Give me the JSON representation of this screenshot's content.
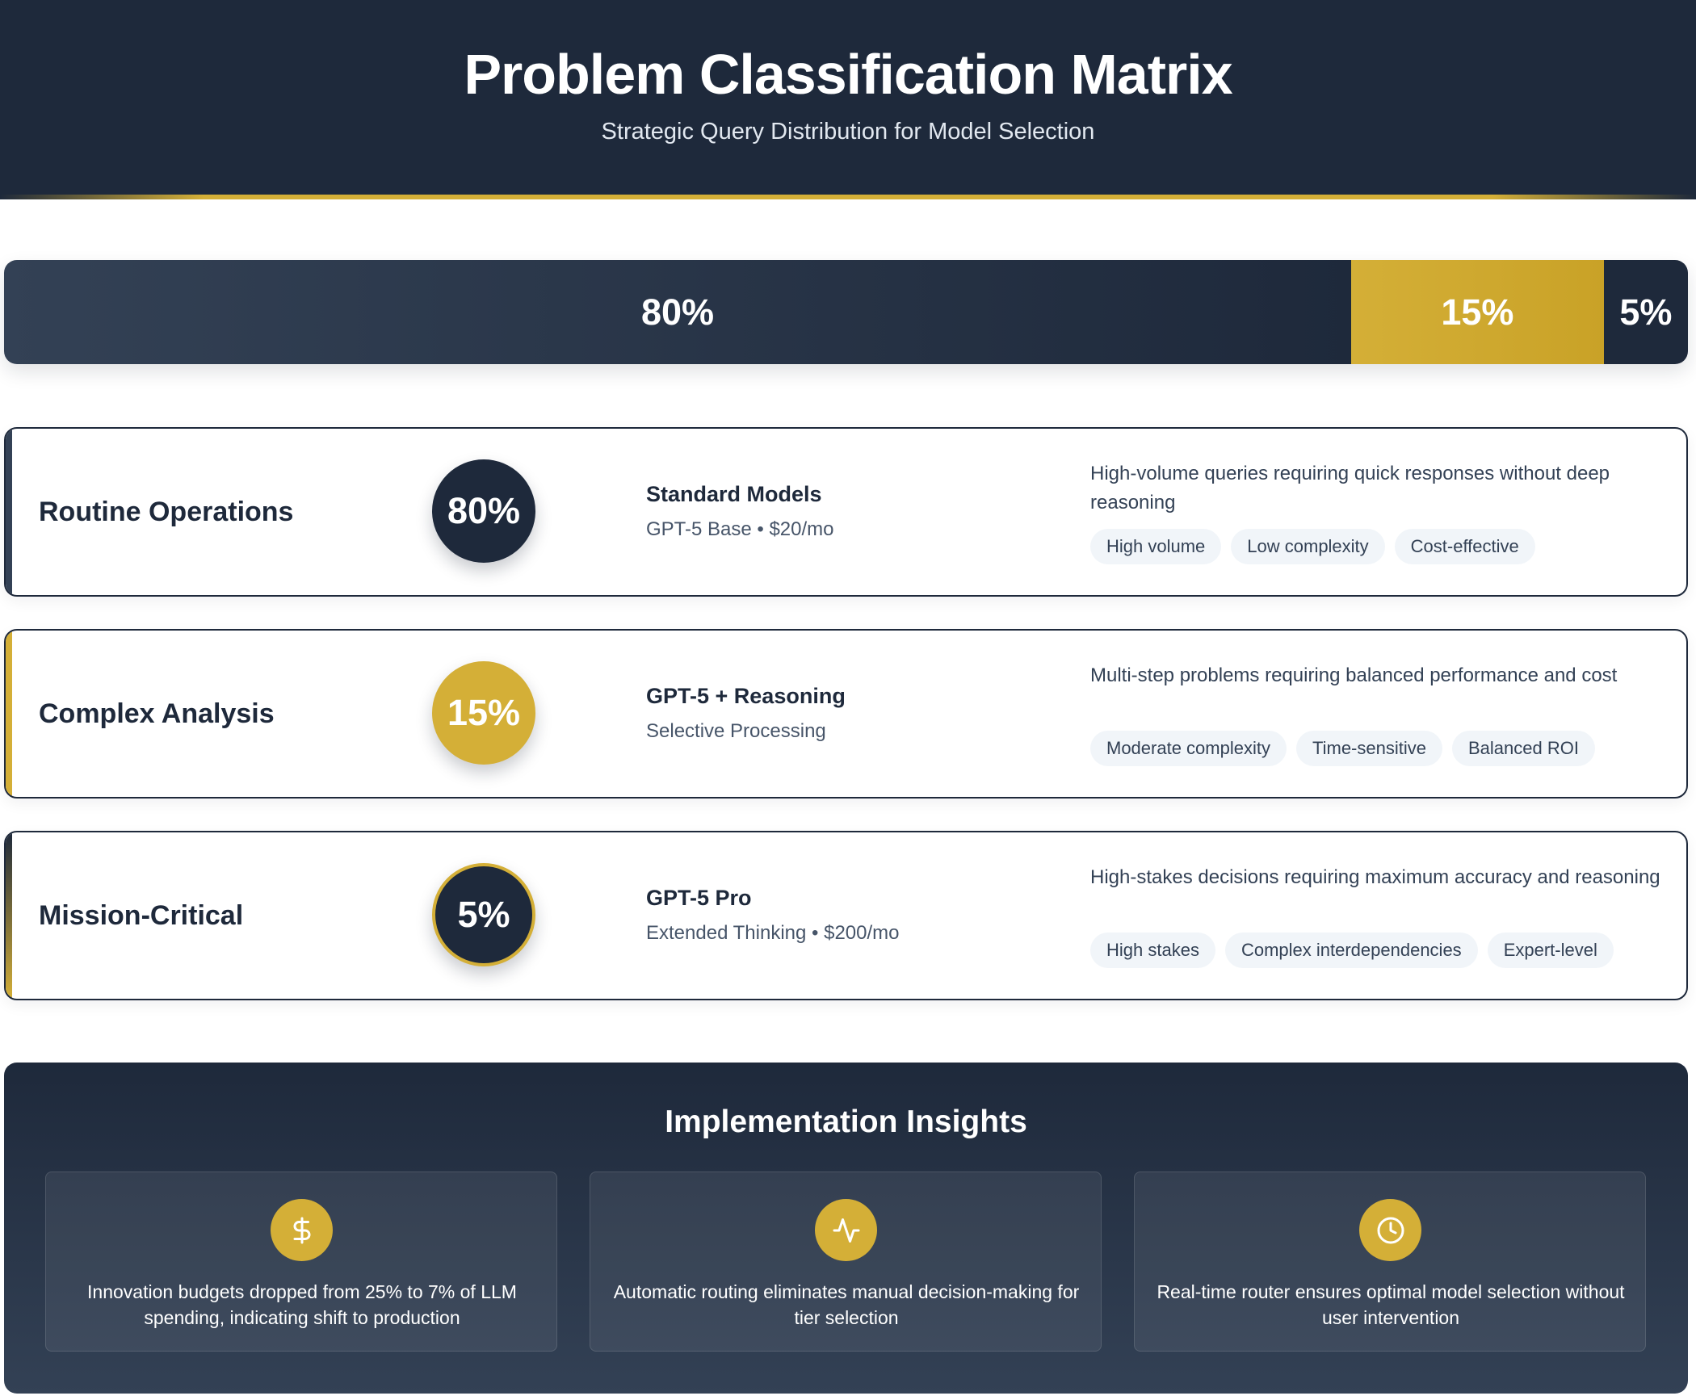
{
  "header": {
    "title": "Problem Classification Matrix",
    "subtitle": "Strategic Query Distribution for Model Selection"
  },
  "distribution": [
    {
      "label": "80%",
      "value": 80,
      "color": "#1e293b"
    },
    {
      "label": "15%",
      "value": 15,
      "color": "#d4af37"
    },
    {
      "label": "5%",
      "value": 5,
      "color": "#1e293b"
    }
  ],
  "categories": [
    {
      "name": "Routine Operations",
      "percent": "80%",
      "model_name": "Standard Models",
      "model_sub": "GPT-5 Base • $20/mo",
      "description": "High-volume queries requiring quick responses without deep reasoning",
      "tags": [
        "High volume",
        "Low complexity",
        "Cost-effective"
      ]
    },
    {
      "name": "Complex Analysis",
      "percent": "15%",
      "model_name": "GPT-5 + Reasoning",
      "model_sub": "Selective Processing",
      "description": "Multi-step problems requiring balanced performance and cost",
      "tags": [
        "Moderate complexity",
        "Time-sensitive",
        "Balanced ROI"
      ]
    },
    {
      "name": "Mission-Critical",
      "percent": "5%",
      "model_name": "GPT-5 Pro",
      "model_sub": "Extended Thinking • $200/mo",
      "description": "High-stakes decisions requiring maximum accuracy and reasoning",
      "tags": [
        "High stakes",
        "Complex interdependencies",
        "Expert-level"
      ]
    }
  ],
  "insights": {
    "title": "Implementation Insights",
    "items": [
      {
        "icon": "dollar-icon",
        "text": "Innovation budgets dropped from 25% to 7% of LLM spending, indicating shift to production"
      },
      {
        "icon": "activity-icon",
        "text": "Automatic routing eliminates manual decision-making for tier selection"
      },
      {
        "icon": "clock-icon",
        "text": "Real-time router ensures optimal model selection without user intervention"
      }
    ]
  },
  "colors": {
    "navy": "#1e293b",
    "gold": "#d4af37",
    "slate": "#334155",
    "tag_bg": "#f1f5f9"
  }
}
